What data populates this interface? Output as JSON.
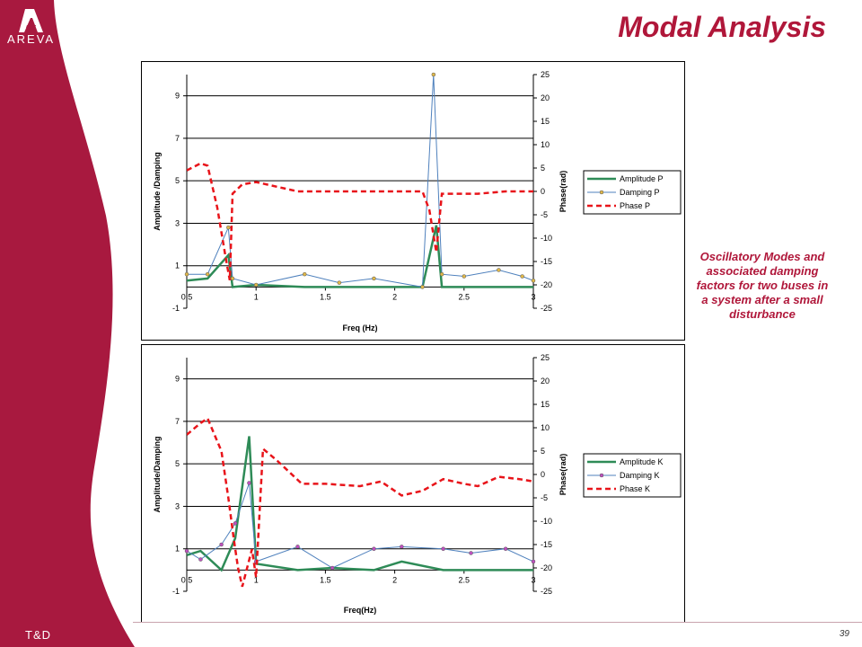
{
  "header": {
    "title": "Modal Analysis",
    "brand": "AREVA",
    "division": "T&D",
    "page_number": "39"
  },
  "caption": "Oscillatory Modes and associated damping factors for two buses in a system after a small disturbance",
  "colors": {
    "brand_red": "#a8193f",
    "title_red": "#b0173a",
    "amplitude": "#2e8b57",
    "damping": "#4f81bd",
    "phase": "#e8141a"
  },
  "chart_data": [
    {
      "type": "line",
      "xlabel": "Freq (Hz)",
      "ylabel": "Amplitude /Damping",
      "y2label": "Phase(rad)",
      "xlim": [
        0.5,
        3
      ],
      "ylim": [
        -1,
        10
      ],
      "y2lim": [
        -25,
        25
      ],
      "xticks": [
        "0.5",
        "1",
        "1.5",
        "2",
        "2.5",
        "3"
      ],
      "yticks": [
        "-1",
        "1",
        "3",
        "5",
        "7",
        "9"
      ],
      "y2ticks": [
        "-25",
        "-20",
        "-15",
        "-10",
        "-5",
        "0",
        "5",
        "10",
        "15",
        "20",
        "25"
      ],
      "grid": true,
      "legend": "right",
      "series": [
        {
          "name": "Amplitude P",
          "axis": "left",
          "x": [
            0.5,
            0.65,
            0.8,
            0.83,
            1.0,
            1.35,
            2.2,
            2.3,
            2.34,
            2.5,
            3.0
          ],
          "y": [
            0.3,
            0.4,
            1.5,
            0.0,
            0.1,
            0.0,
            0.0,
            2.9,
            0.0,
            0.0,
            0.0
          ]
        },
        {
          "name": "Damping P",
          "axis": "left",
          "x": [
            0.5,
            0.65,
            0.8,
            0.83,
            1.0,
            1.35,
            1.6,
            1.85,
            2.2,
            2.28,
            2.34,
            2.5,
            2.75,
            2.92,
            3.0
          ],
          "y": [
            0.6,
            0.6,
            2.8,
            0.4,
            0.1,
            0.6,
            0.2,
            0.4,
            0.0,
            10.0,
            0.6,
            0.5,
            0.8,
            0.5,
            0.3
          ]
        },
        {
          "name": "Phase P",
          "axis": "right",
          "x": [
            0.5,
            0.6,
            0.65,
            0.72,
            0.78,
            0.81,
            0.83,
            0.9,
            1.0,
            1.15,
            1.3,
            1.6,
            2.0,
            2.2,
            2.25,
            2.3,
            2.34,
            2.5,
            2.6,
            2.8,
            3.0
          ],
          "y": [
            4.5,
            6.0,
            5.5,
            -3.5,
            -14.0,
            -19.0,
            -0.5,
            1.5,
            2.0,
            1.0,
            0.0,
            0.0,
            0.0,
            0.0,
            -4.0,
            -13.0,
            -0.5,
            -0.5,
            -0.5,
            0.0,
            0.0
          ]
        }
      ]
    },
    {
      "type": "line",
      "xlabel": "Freq(Hz)",
      "ylabel": "Amplitude/Damping",
      "y2label": "Phase(rad)",
      "xlim": [
        0.5,
        3
      ],
      "ylim": [
        -1,
        10
      ],
      "y2lim": [
        -25,
        25
      ],
      "xticks": [
        "0.5",
        "1",
        "1.5",
        "2",
        "2.5",
        "3"
      ],
      "yticks": [
        "-1",
        "1",
        "3",
        "5",
        "7",
        "9"
      ],
      "y2ticks": [
        "-25",
        "-20",
        "-15",
        "-10",
        "-5",
        "0",
        "5",
        "10",
        "15",
        "20",
        "25"
      ],
      "grid": true,
      "legend": "right",
      "series": [
        {
          "name": "Amplitude K",
          "axis": "left",
          "x": [
            0.5,
            0.6,
            0.75,
            0.85,
            0.95,
            1.0,
            1.3,
            1.55,
            1.85,
            2.05,
            2.35,
            2.8,
            3.0
          ],
          "y": [
            0.7,
            0.9,
            0.0,
            1.5,
            6.3,
            0.3,
            0.0,
            0.1,
            0.0,
            0.4,
            0.0,
            0.0,
            0.0
          ]
        },
        {
          "name": "Damping K",
          "axis": "left",
          "x": [
            0.5,
            0.6,
            0.75,
            0.85,
            0.95,
            1.0,
            1.3,
            1.55,
            1.85,
            2.05,
            2.35,
            2.55,
            2.8,
            3.0
          ],
          "y": [
            0.9,
            0.5,
            1.2,
            2.2,
            4.1,
            0.4,
            1.1,
            0.1,
            1.0,
            1.1,
            1.0,
            0.8,
            1.0,
            0.4
          ]
        },
        {
          "name": "Phase K",
          "axis": "right",
          "x": [
            0.5,
            0.6,
            0.65,
            0.75,
            0.8,
            0.84,
            0.87,
            0.9,
            0.97,
            1.0,
            1.05,
            1.15,
            1.33,
            1.5,
            1.75,
            1.9,
            2.05,
            2.2,
            2.35,
            2.5,
            2.6,
            2.75,
            2.9,
            3.0
          ],
          "y": [
            8.5,
            11.0,
            12.0,
            5.0,
            -5.0,
            -14.0,
            -20.0,
            -24.0,
            -16.0,
            -22.0,
            5.5,
            3.0,
            -2.0,
            -2.0,
            -2.5,
            -1.5,
            -4.5,
            -3.5,
            -1.0,
            -2.0,
            -2.5,
            -0.5,
            -1.0,
            -1.5
          ]
        }
      ]
    }
  ]
}
